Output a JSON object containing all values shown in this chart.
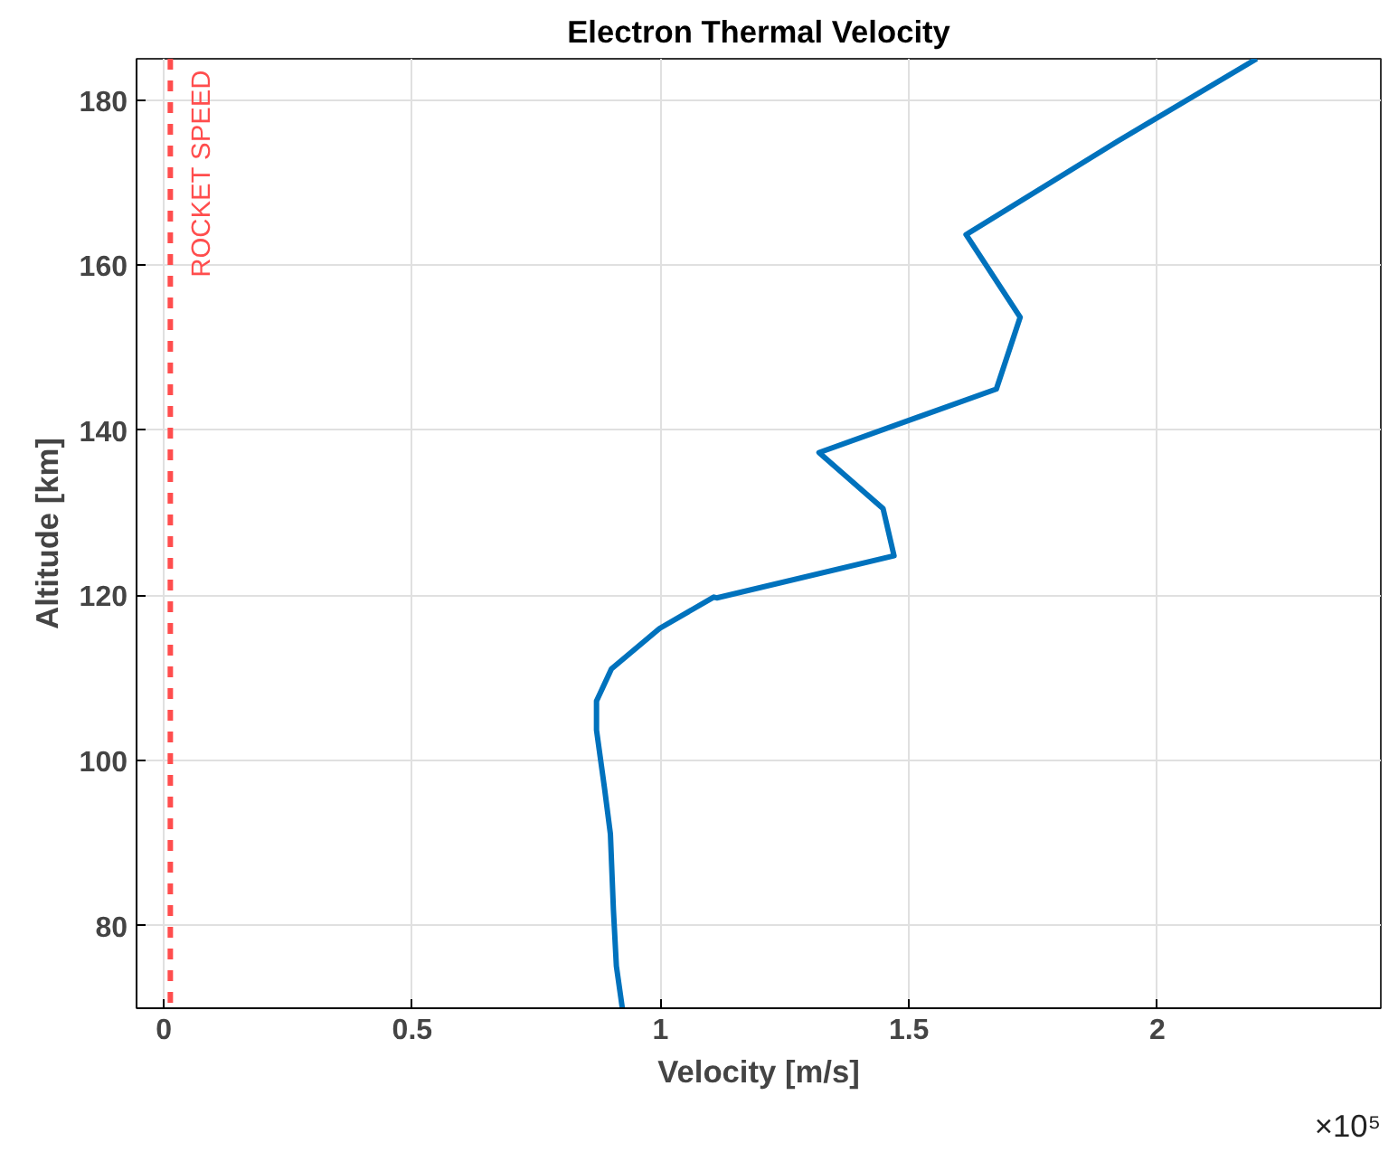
{
  "chart_data": {
    "type": "line",
    "title": "Electron Thermal Velocity",
    "xlabel": "Velocity [m/s]",
    "ylabel": "Altitude [km]",
    "series": [
      {
        "color": "#0072bd",
        "x": [
          0.923,
          0.911,
          0.905,
          0.899,
          0.887,
          0.871,
          0.871,
          0.901,
          0.998,
          1.107,
          1.113,
          1.47,
          1.448,
          1.319,
          1.676,
          1.724,
          1.615,
          1.92,
          2.2
        ],
        "values": [
          70,
          75.1,
          82,
          91.1,
          96.7,
          103.7,
          107.2,
          111.1,
          116,
          119.8,
          119.7,
          124.8,
          130.5,
          137.3,
          145,
          153.7,
          163.7,
          175,
          185
        ]
      }
    ],
    "xlim": [
      -0.055,
      2.45
    ],
    "ylim": [
      70,
      185
    ],
    "xticks": [
      0,
      0.5,
      1,
      1.5,
      2
    ],
    "yticks": [
      80,
      100,
      120,
      140,
      160,
      180
    ],
    "grid": true,
    "line_style": "solid",
    "marker": "none",
    "ref_lines": [
      {
        "axis": "x",
        "value": 0.013,
        "label": "ROCKET SPEED",
        "color": "#ff4d4d",
        "line_style": "dashed"
      }
    ],
    "annotations": [
      "×10⁵"
    ]
  }
}
